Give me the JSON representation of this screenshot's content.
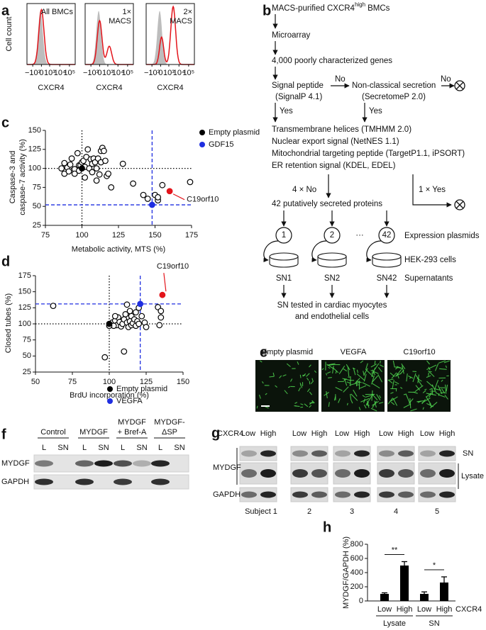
{
  "panel_a": {
    "letter": "a",
    "y_label": "Cell count",
    "x_label": "CXCR4",
    "xticks": [
      "−10³",
      "0",
      "10³",
      "10⁴",
      "10⁵"
    ],
    "histograms": [
      [
        "All BMCs"
      ],
      [
        "1×",
        "MACS"
      ],
      [
        "2×",
        "MACS"
      ]
    ]
  },
  "panel_b": {
    "letter": "b",
    "start": {
      "text": "MACS-purified CXCR4",
      "sup": "high",
      "tail": "BMCs"
    },
    "step2": "Microarray",
    "step3": "4,000 poorly characterized genes",
    "signal": [
      "Signal peptide",
      "(SignalP 4.1)"
    ],
    "nonclassical": [
      "Non-classical secretion",
      "(SecretomeP 2.0)"
    ],
    "no_labels": [
      "No",
      "No"
    ],
    "yes_labels": [
      "Yes",
      "Yes"
    ],
    "filters": [
      "Transmembrane helices (TMHMM 2.0)",
      "Nuclear export signal (NetNES 1.1)",
      "Mitochondrial targeting peptide (TargetP1.1, iPSORT)",
      "ER retention signal (KDEL, EDEL)"
    ],
    "count_no": "4 × No",
    "count_yes": "1 × Yes",
    "secreted": "42 putatively secreted proteins",
    "plasmids": [
      "1",
      "2",
      "42"
    ],
    "ellipsis": "···",
    "plasmid_label": "Expression plasmids",
    "cells_label": "HEK-293 cells",
    "supernatants": [
      "SN1",
      "SN2",
      "SN42"
    ],
    "supernatant_label": "Supernatants",
    "test": [
      "SN tested in cardiac myocytes",
      "and endothelial cells"
    ]
  },
  "panel_e": {
    "letter": "e",
    "labels": [
      "Empty plasmid",
      "VEGFA",
      "C19orf10"
    ]
  },
  "panel_f": {
    "letter": "f",
    "columns": [
      [
        "Control"
      ],
      [
        "MYDGF"
      ],
      [
        "MYDGF",
        "+ Bref-A"
      ],
      [
        "MYDGF-",
        "ΔSP"
      ]
    ],
    "lanes": [
      "L",
      "SN"
    ],
    "rows": [
      "MYDGF",
      "GAPDH"
    ]
  },
  "panel_g": {
    "letter": "g",
    "header": "CXCR4",
    "lanes": [
      "Low",
      "High"
    ],
    "rows": [
      "MYDGF",
      "GAPDH"
    ],
    "fractions": [
      "SN",
      "Lysate"
    ],
    "subjects": [
      "Subject 1",
      "2",
      "3",
      "4",
      "5"
    ]
  },
  "chart_data": [
    {
      "panel": "c",
      "type": "scatter",
      "x_label": "Metabolic activity, MTS (%)",
      "y_label": [
        "Caspase-3 and",
        "caspase-7 activity (%)"
      ],
      "xlim": [
        75,
        175
      ],
      "ylim": [
        25,
        150
      ],
      "xticks": [
        75,
        100,
        125,
        150,
        175
      ],
      "yticks": [
        25,
        50,
        75,
        100,
        125,
        150
      ],
      "legend": "upper right",
      "series": [
        {
          "color": "#000000",
          "marker": "open",
          "x": [
            86,
            88,
            88,
            90,
            91,
            92,
            93,
            95,
            95,
            97,
            98,
            98,
            99,
            100,
            101,
            102,
            102,
            103,
            104,
            105,
            106,
            107,
            107,
            108,
            109,
            110,
            110,
            111,
            113,
            114,
            115,
            113,
            112,
            116,
            117,
            120,
            118,
            128,
            135,
            142,
            145,
            150,
            152,
            152,
            155,
            174
          ],
          "y": [
            100,
            107,
            93,
            101,
            96,
            105,
            113,
            99,
            93,
            120,
            97,
            104,
            104,
            108,
            110,
            102,
            88,
            115,
            125,
            100,
            112,
            95,
            106,
            113,
            108,
            84,
            100,
            113,
            123,
            127,
            123,
            108,
            92,
            110,
            90,
            75,
            93,
            106,
            80,
            65,
            60,
            65,
            58,
            62,
            78,
            82
          ]
        },
        {
          "name": "Empty plasmid",
          "color": "#000000",
          "reference": "dotted",
          "x": [
            100
          ],
          "y": [
            100
          ]
        },
        {
          "name": "GDF15",
          "color": "#1f2ee0",
          "reference": "dashed",
          "x": [
            148
          ],
          "y": [
            52
          ]
        },
        {
          "annotation": "C19orf10",
          "color": "#e3141b",
          "x": [
            160
          ],
          "y": [
            70
          ]
        }
      ]
    },
    {
      "panel": "d",
      "type": "scatter",
      "x_label": "BrdU incorporation (%)",
      "y_label": [
        "Closed tubes (%)"
      ],
      "xlim": [
        50,
        150
      ],
      "ylim": [
        25,
        175
      ],
      "xticks": [
        50,
        75,
        100,
        125,
        150
      ],
      "yticks": [
        25,
        50,
        75,
        100,
        125,
        150,
        175
      ],
      "legend": "lower right",
      "series": [
        {
          "color": "#000000",
          "marker": "open",
          "x": [
            62,
            97,
            110,
            102,
            104,
            105,
            106,
            107,
            108,
            109,
            110,
            111,
            112,
            113,
            114,
            115,
            115,
            116,
            117,
            118,
            119,
            120,
            112,
            114,
            118,
            120,
            122,
            124,
            125,
            133,
            135,
            135,
            134,
            104,
            103,
            100
          ],
          "y": [
            128,
            48,
            57,
            102,
            105,
            98,
            110,
            103,
            96,
            100,
            107,
            115,
            102,
            95,
            104,
            112,
            98,
            101,
            107,
            97,
            104,
            100,
            130,
            120,
            118,
            125,
            112,
            102,
            95,
            126,
            120,
            110,
            98,
            112,
            97,
            97
          ]
        },
        {
          "name": "Empty plasmid",
          "color": "#000000",
          "reference": "dotted",
          "x": [
            100
          ],
          "y": [
            100
          ]
        },
        {
          "name": "VEGFA",
          "color": "#1f2ee0",
          "reference": "dashed",
          "x": [
            121
          ],
          "y": [
            131
          ]
        },
        {
          "annotation": "C19orf10",
          "color": "#e3141b",
          "x": [
            136
          ],
          "y": [
            145
          ]
        }
      ]
    },
    {
      "panel": "h",
      "type": "bar",
      "y_label": "MYDGF/GAPDH (%)",
      "categories": [
        "Low",
        "High",
        "Low",
        "High"
      ],
      "values": [
        100,
        500,
        100,
        260
      ],
      "errors": [
        15,
        55,
        28,
        80
      ],
      "color": "#000000",
      "ylim": [
        0,
        800
      ],
      "yticks": [
        0,
        200,
        400,
        600,
        800
      ],
      "groups": [
        "Lysate",
        "SN"
      ],
      "significance": [
        "**",
        "*"
      ],
      "category_axis_label": "CXCR4"
    }
  ]
}
